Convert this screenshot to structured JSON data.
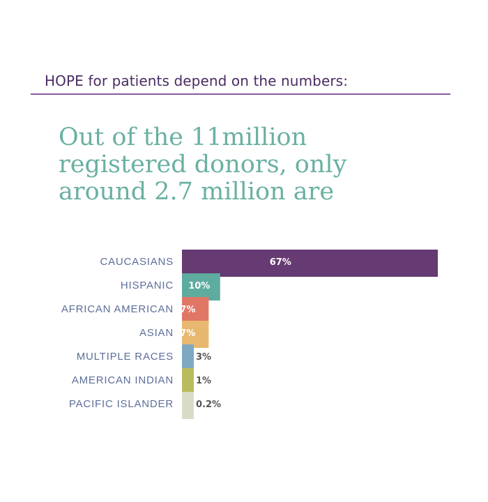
{
  "header": {
    "text": "HOPE for patients depend on the numbers:"
  },
  "headline": {
    "line1": "Out of the 11million",
    "line2": "registered donors, only",
    "line3": "around 2.7 million are"
  },
  "colors": {
    "caucasians": "#663a72",
    "hispanic": "#5eab9f",
    "african_american": "#e07765",
    "asian": "#e8b870",
    "multiple_races": "#7fa9c2",
    "american_indian": "#b9bc5d",
    "pacific_islander": "#d8dcc6"
  },
  "chart_data": {
    "type": "bar",
    "orientation": "horizontal",
    "categories": [
      "CAUCASIANS",
      "HISPANIC",
      "AFRICAN AMERICAN",
      "ASIAN",
      "MULTIPLE RACES",
      "AMERICAN INDIAN",
      "PACIFIC ISLANDER"
    ],
    "values": [
      67,
      10,
      7,
      7,
      3,
      1,
      0.2
    ],
    "data_labels": [
      "67%",
      "10%",
      "7%",
      "7%",
      "3%",
      "1%",
      "0.2%"
    ],
    "unit": "%",
    "title": "",
    "xlabel": "",
    "ylabel": "",
    "grid": false,
    "legend": "none"
  }
}
